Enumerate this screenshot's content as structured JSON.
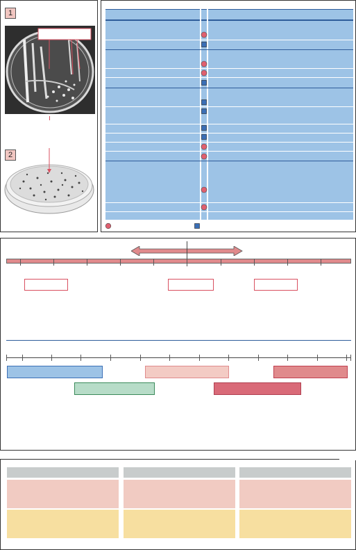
{
  "figure": {
    "step_labels": [
      "1",
      "2"
    ]
  },
  "colors": {
    "pink": "#f1c6c1",
    "blue_fill": "#9dc3e6",
    "blue_dark": "#2e5c9a",
    "red_marker": "#e06070",
    "green": "#b7dcc8",
    "red_bar": "#e08a8c",
    "red_bar2": "#d96a78",
    "gray": "#c8cccc",
    "yellow": "#f7dfa0"
  },
  "icons": {
    "circle_marker": "circle-marker-icon",
    "square_marker": "square-marker-icon",
    "double_arrow": "double-arrow-icon"
  },
  "table_markers": [
    "circle",
    "square",
    "circle",
    "circle",
    "square",
    "square",
    "square",
    "square",
    "square",
    "circle",
    "circle",
    "circle",
    "circle"
  ]
}
